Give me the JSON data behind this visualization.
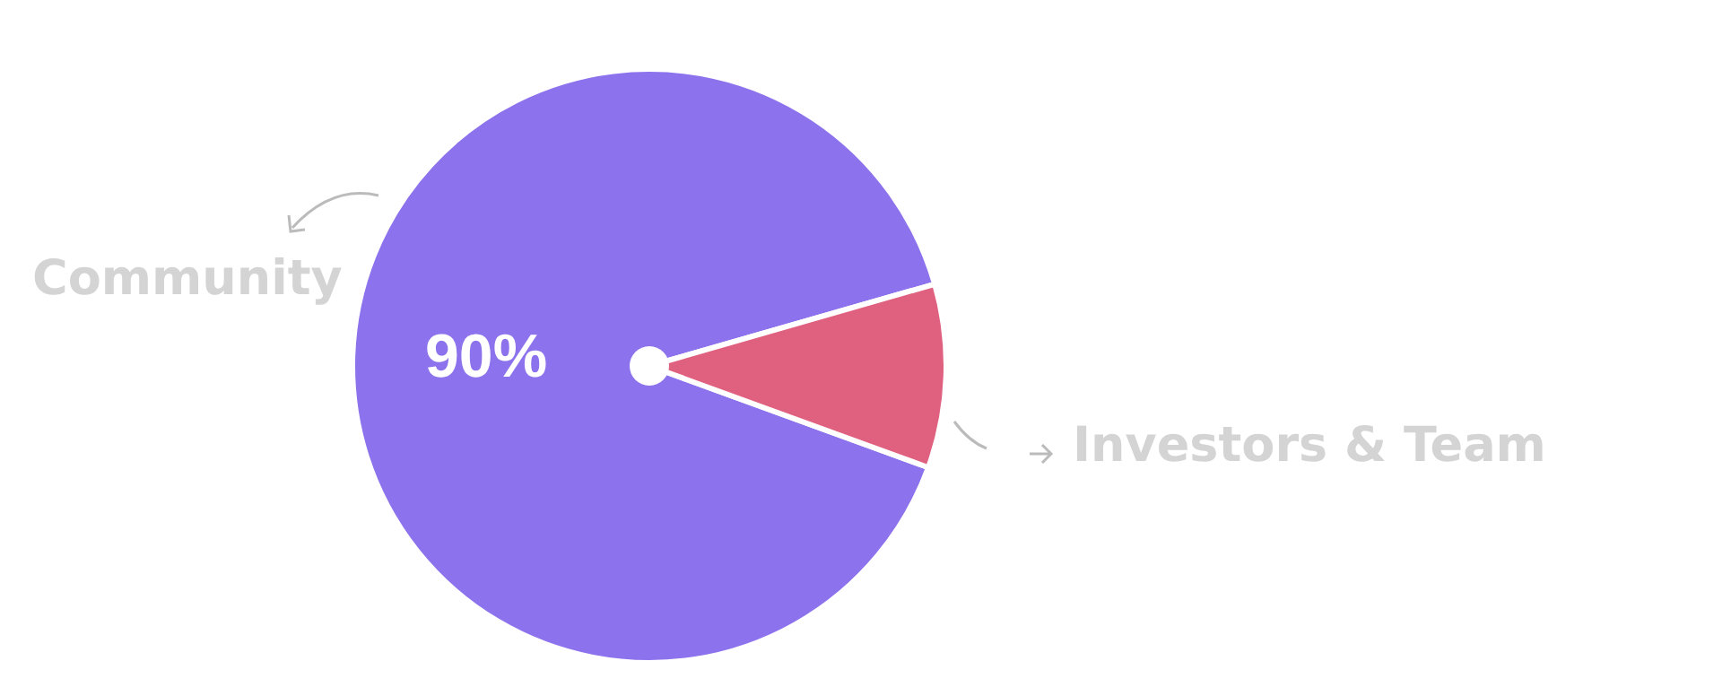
{
  "chart_data": {
    "type": "pie",
    "categories": [
      "Community",
      "Investors & Team"
    ],
    "values": [
      90,
      10
    ],
    "colors": [
      "#8c72ec",
      "#e0607f"
    ],
    "value_labels": [
      "90%",
      null
    ],
    "legend": false
  }
}
